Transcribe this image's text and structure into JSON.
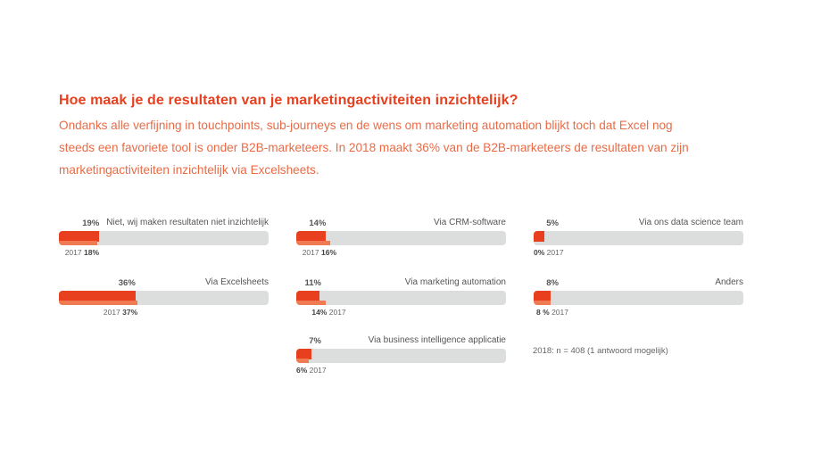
{
  "header": {
    "title": "Hoe maak je de resultaten van je marketingactiviteiten inzichtelijk?",
    "subtitle": "Ondanks alle verfijning in touchpoints, sub-journeys en de wens om marketing automation blijkt toch dat Excel nog steeds een favoriete tool is onder B2B-marketeers. In 2018 maakt 36% van de B2B-marketeers de resultaten van zijn marketingactiviteiten inzichtelijk via Excelsheets."
  },
  "chart_data": {
    "type": "bar",
    "unit": "%",
    "max": 100,
    "items": [
      {
        "label": "Niet, wij maken resultaten niet inzichtelijk",
        "value_2018": 19,
        "value_2017": 18,
        "label_2018": "19%",
        "label_2017_year": "2017",
        "label_2017": "18%"
      },
      {
        "label": "Via Excelsheets",
        "value_2018": 36,
        "value_2017": 37,
        "label_2018": "36%",
        "label_2017_year": "2017",
        "label_2017": "37%"
      },
      {
        "label": "Via CRM-software",
        "value_2018": 14,
        "value_2017": 16,
        "label_2018": "14%",
        "label_2017_year": "2017",
        "label_2017": "16%"
      },
      {
        "label": "Via marketing automation",
        "value_2018": 11,
        "value_2017": 14,
        "label_2018": "11%",
        "label_2017_year": "2017",
        "label_2017": "14%"
      },
      {
        "label": "Via business intelligence applicatie",
        "value_2018": 7,
        "value_2017": 6,
        "label_2018": "7%",
        "label_2017_year": "2017",
        "label_2017": "6%"
      },
      {
        "label": "Via ons data science team",
        "value_2018": 5,
        "value_2017": 0,
        "label_2018": "5%",
        "label_2017_year": "2017",
        "label_2017": "0%"
      },
      {
        "label": "Anders",
        "value_2018": 8,
        "value_2017": 8,
        "label_2018": "8%",
        "label_2017_year": "2017",
        "label_2017": "8 %"
      }
    ],
    "colors": {
      "bar_2018": "#e8401f",
      "bar_2017": "#f07a52",
      "track": "#dcdddd"
    }
  },
  "footnote": "2018: n = 408 (1 antwoord mogelijk)"
}
